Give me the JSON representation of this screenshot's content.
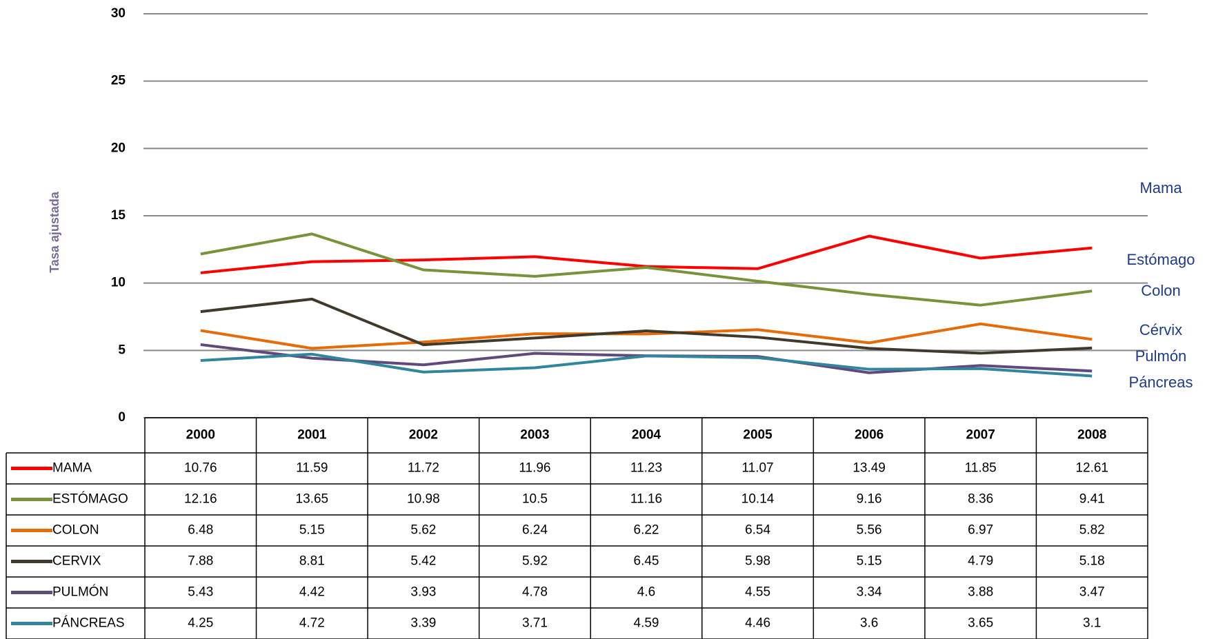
{
  "chart_data": {
    "type": "line",
    "y_label": "Tasa ajustada",
    "categories": [
      "2000",
      "2001",
      "2002",
      "2003",
      "2004",
      "2005",
      "2006",
      "2007",
      "2008"
    ],
    "series": [
      {
        "name": "MAMA",
        "color": "#ff0000",
        "values": [
          10.76,
          11.59,
          11.72,
          11.96,
          11.23,
          11.07,
          13.49,
          11.85,
          12.61
        ]
      },
      {
        "name": "ESTÓMAGO",
        "color": "#77933c",
        "values": [
          12.16,
          13.65,
          10.98,
          10.5,
          11.16,
          10.14,
          9.16,
          8.36,
          9.41
        ]
      },
      {
        "name": "COLON",
        "color": "#e46c0a",
        "values": [
          6.48,
          5.15,
          5.62,
          6.24,
          6.22,
          6.54,
          5.56,
          6.97,
          5.82
        ]
      },
      {
        "name": "CERVIX",
        "color": "#403a2c",
        "values": [
          7.88,
          8.81,
          5.42,
          5.92,
          6.45,
          5.98,
          5.15,
          4.79,
          5.18
        ]
      },
      {
        "name": "PULMÓN",
        "color": "#604a7b",
        "values": [
          5.43,
          4.42,
          3.93,
          4.78,
          4.6,
          4.55,
          3.34,
          3.88,
          3.47
        ]
      },
      {
        "name": "PÁNCREAS",
        "color": "#31859c",
        "values": [
          4.25,
          4.72,
          3.39,
          3.71,
          4.59,
          4.46,
          3.6,
          3.65,
          3.1
        ]
      }
    ],
    "annotations": [
      "Mama",
      "Estómago",
      "Colon",
      "Cérvix",
      "Pulmón",
      "Páncreas"
    ],
    "ylim": [
      0,
      30
    ],
    "yticks": [
      0,
      5,
      10,
      15,
      20,
      25,
      30
    ],
    "grid": true,
    "data_table": true
  }
}
